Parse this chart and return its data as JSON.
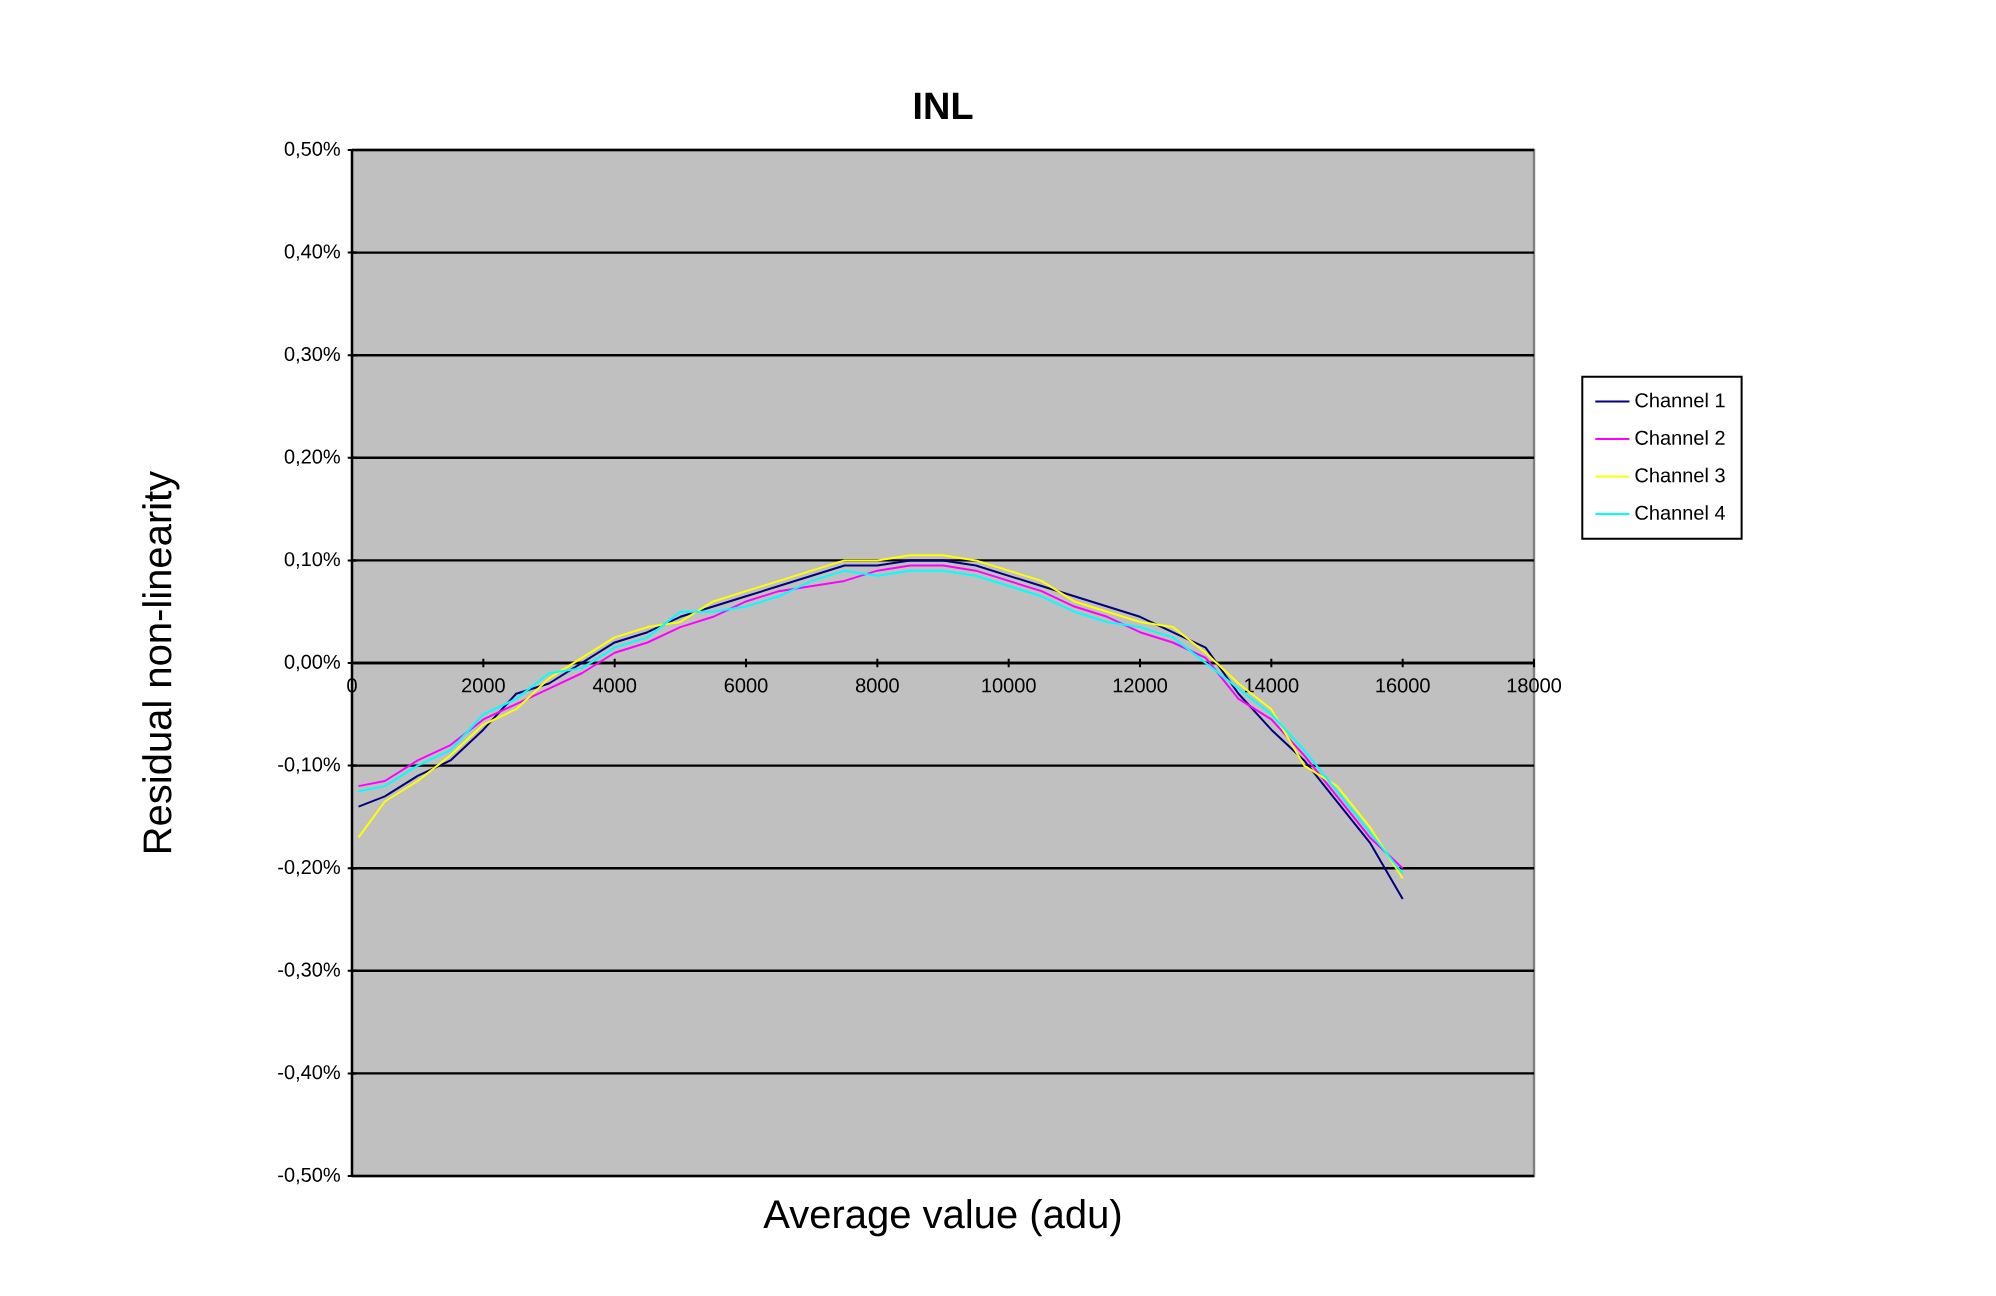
{
  "chart_data": {
    "type": "line",
    "title": "INL",
    "xlabel": "Average value (adu)",
    "ylabel": "Residual non-linearity",
    "xlim": [
      0,
      18000
    ],
    "xticks": [
      0,
      2000,
      4000,
      6000,
      8000,
      10000,
      12000,
      14000,
      16000,
      18000
    ],
    "ylim": [
      -0.5,
      0.5
    ],
    "yticks": [
      {
        "value": -0.5,
        "label": "-0,50%"
      },
      {
        "value": -0.4,
        "label": "-0,40%"
      },
      {
        "value": -0.3,
        "label": "-0,30%"
      },
      {
        "value": -0.2,
        "label": "-0,20%"
      },
      {
        "value": -0.1,
        "label": "-0,10%"
      },
      {
        "value": 0,
        "label": "0,00%"
      },
      {
        "value": 0.1,
        "label": "0,10%"
      },
      {
        "value": 0.2,
        "label": "0,20%"
      },
      {
        "value": 0.3,
        "label": "0,30%"
      },
      {
        "value": 0.4,
        "label": "0,40%"
      },
      {
        "value": 0.5,
        "label": "0,50%"
      }
    ],
    "grid": "y",
    "legend": "right",
    "marker": "none",
    "line_style": "solid",
    "x": [
      100,
      500,
      1000,
      1500,
      2000,
      2500,
      3000,
      3500,
      4000,
      4500,
      5000,
      5500,
      6000,
      6500,
      7000,
      7500,
      8000,
      8500,
      9000,
      9500,
      10000,
      10500,
      11000,
      11500,
      12000,
      12500,
      13000,
      13500,
      14000,
      14500,
      15000,
      15500,
      16000
    ],
    "series": [
      {
        "name": "Channel 1",
        "color": "#000080",
        "values": [
          -0.14,
          -0.13,
          -0.11,
          -0.095,
          -0.065,
          -0.03,
          -0.02,
          0.0,
          0.02,
          0.03,
          0.045,
          0.055,
          0.065,
          0.075,
          0.085,
          0.095,
          0.095,
          0.1,
          0.1,
          0.095,
          0.085,
          0.075,
          0.065,
          0.055,
          0.045,
          0.03,
          0.015,
          -0.03,
          -0.065,
          -0.095,
          -0.135,
          -0.175,
          -0.23
        ]
      },
      {
        "name": "Channel 2",
        "color": "#ff00ff",
        "values": [
          -0.12,
          -0.115,
          -0.095,
          -0.08,
          -0.055,
          -0.04,
          -0.025,
          -0.01,
          0.01,
          0.02,
          0.035,
          0.045,
          0.06,
          0.07,
          0.075,
          0.08,
          0.09,
          0.095,
          0.095,
          0.09,
          0.08,
          0.07,
          0.055,
          0.045,
          0.03,
          0.02,
          0.005,
          -0.035,
          -0.055,
          -0.09,
          -0.13,
          -0.17,
          -0.2
        ]
      },
      {
        "name": "Channel 3",
        "color": "#ffff00",
        "values": [
          -0.17,
          -0.135,
          -0.115,
          -0.09,
          -0.06,
          -0.045,
          -0.015,
          0.005,
          0.025,
          0.035,
          0.04,
          0.06,
          0.07,
          0.08,
          0.09,
          0.1,
          0.1,
          0.105,
          0.105,
          0.1,
          0.09,
          0.08,
          0.06,
          0.05,
          0.04,
          0.035,
          0.01,
          -0.02,
          -0.045,
          -0.1,
          -0.12,
          -0.16,
          -0.21
        ]
      },
      {
        "name": "Channel 4",
        "color": "#00ffff",
        "values": [
          -0.125,
          -0.12,
          -0.1,
          -0.085,
          -0.05,
          -0.035,
          -0.01,
          -0.005,
          0.015,
          0.025,
          0.05,
          0.05,
          0.055,
          0.065,
          0.08,
          0.09,
          0.085,
          0.09,
          0.09,
          0.085,
          0.075,
          0.065,
          0.05,
          0.04,
          0.035,
          0.025,
          0.0,
          -0.025,
          -0.05,
          -0.085,
          -0.125,
          -0.165,
          -0.205
        ]
      }
    ]
  }
}
